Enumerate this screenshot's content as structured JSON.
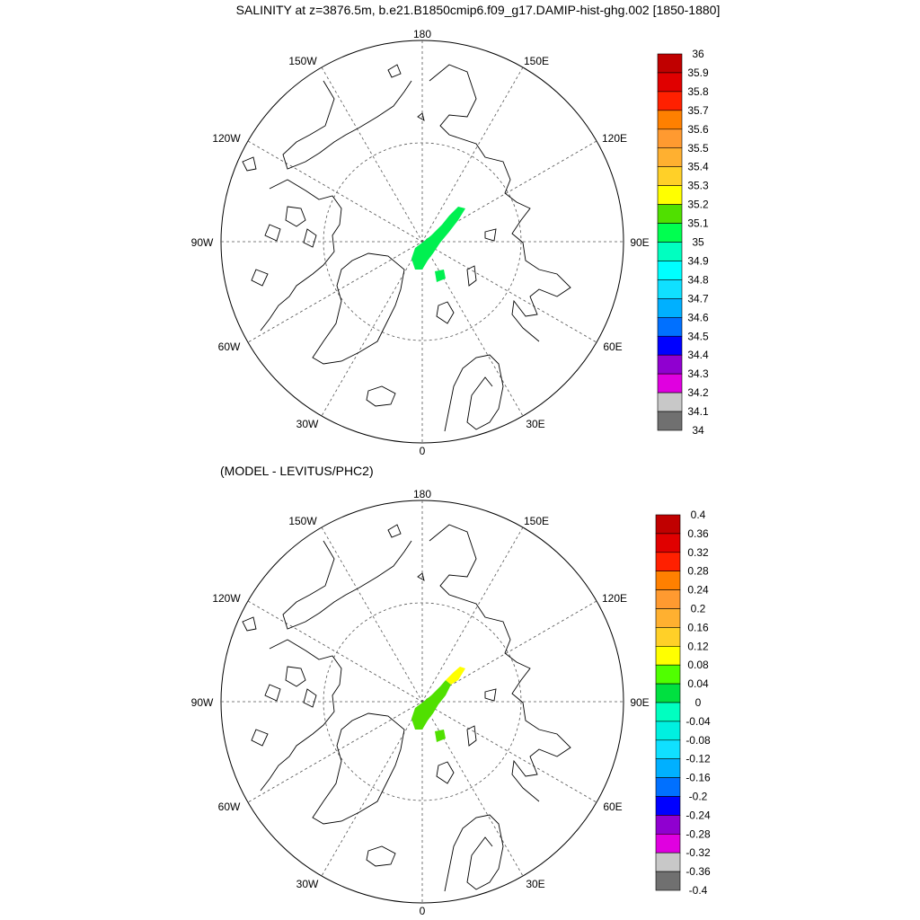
{
  "figure": {
    "title": "SALINITY at z=3876.5m, b.e21.B1850cmip6.f09_g17.DAMIP-hist-ghg.002 [1850-1880]",
    "bottom_title": "(MODEL - LEVITUS/PHC2)"
  },
  "longitude_labels": {
    "lon_180": "180",
    "lon_150e": "150E",
    "lon_120e": "120E",
    "lon_90e": "90E",
    "lon_60e": "60E",
    "lon_30e": "30E",
    "lon_0": "0",
    "lon_30w": "30W",
    "lon_60w": "60W",
    "lon_90w": "90W",
    "lon_120w": "120W",
    "lon_150w": "150W"
  },
  "top_colorbar": {
    "labels": [
      "36",
      "35.9",
      "35.8",
      "35.7",
      "35.6",
      "35.5",
      "35.4",
      "35.3",
      "35.2",
      "35.1",
      "35",
      "34.9",
      "34.8",
      "34.7",
      "34.6",
      "34.5",
      "34.4",
      "34.3",
      "34.2",
      "34.1",
      "34"
    ],
    "colors": [
      "#c00000",
      "#e00000",
      "#ff2000",
      "#ff8000",
      "#ff9a30",
      "#ffb030",
      "#ffd028",
      "#ffff00",
      "#50e000",
      "#00ff50",
      "#00ffc0",
      "#00ffff",
      "#10e0ff",
      "#00b0ff",
      "#0070ff",
      "#0000ff",
      "#9000d0",
      "#e000e0",
      "#c8c8c8",
      "#707070"
    ]
  },
  "bottom_colorbar": {
    "labels": [
      "0.4",
      "0.36",
      "0.32",
      "0.28",
      "0.24",
      "0.2",
      "0.16",
      "0.12",
      "0.08",
      "0.04",
      "0",
      "-0.04",
      "-0.08",
      "-0.12",
      "-0.16",
      "-0.2",
      "-0.24",
      "-0.28",
      "-0.32",
      "-0.36",
      "-0.4"
    ],
    "colors": [
      "#c00000",
      "#e00000",
      "#ff2000",
      "#ff8000",
      "#ff9a30",
      "#ffb030",
      "#ffd028",
      "#ffff00",
      "#50ff00",
      "#00e040",
      "#00ffc0",
      "#00f0e0",
      "#10e0ff",
      "#00b0ff",
      "#0070ff",
      "#0000ff",
      "#9000d0",
      "#e000e0",
      "#c8c8c8",
      "#707070"
    ]
  }
}
